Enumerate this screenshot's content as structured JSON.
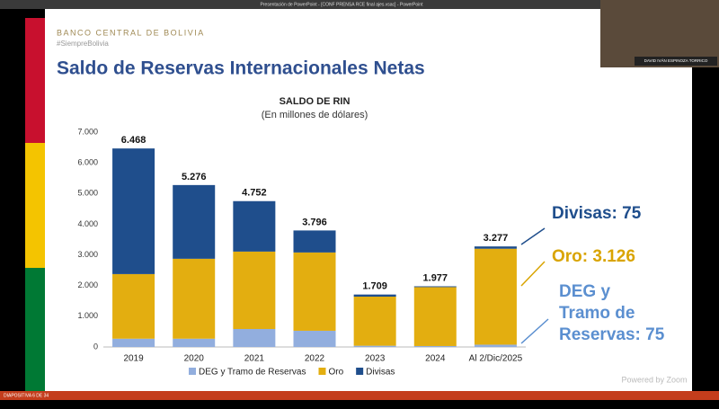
{
  "window": {
    "title": "Presentación de PowerPoint - [CONF PRENSA RCE final ajes.vsac] - PowerPoint",
    "status": "DIAPOSITIVA 6 DE 34",
    "video_name": "DAVID IVÁN ESPINOZA TORRICO",
    "zoom_note": "Powered by Zoom"
  },
  "slide": {
    "brand": "BANCO CENTRAL DE BOLIVIA",
    "hashtag": "#SiempreBolivia",
    "title": "Saldo de Reservas Internacionales Netas",
    "annotations": [
      {
        "lines": [
          "Divisas: 75"
        ],
        "color": "#1f4e8c"
      },
      {
        "lines": [
          "Oro: 3.126"
        ],
        "color": "#d9a400"
      },
      {
        "lines": [
          "DEG y",
          "Tramo de",
          "Reservas: 75"
        ],
        "color": "#5b8fd0"
      }
    ]
  },
  "chart_data": {
    "type": "stacked_bar",
    "title": "SALDO DE RIN",
    "subtitle": "(En millones de dólares)",
    "categories": [
      "2019",
      "2020",
      "2021",
      "2022",
      "2023",
      "2024",
      "Al 2/Dic/2025"
    ],
    "series": [
      {
        "name": "DEG y Tramo de Reservas",
        "color": "#92aede",
        "values": [
          270,
          270,
          586,
          528,
          40,
          30,
          75
        ]
      },
      {
        "name": "Oro",
        "color": "#e3ae10",
        "values": [
          2105,
          2604,
          2522,
          2551,
          1600,
          1920,
          3126
        ]
      },
      {
        "name": "Divisas",
        "color": "#1f4e8c",
        "values": [
          4093,
          2402,
          1644,
          717,
          69,
          27,
          75
        ]
      }
    ],
    "totals": {
      "values": [
        6468,
        5276,
        4752,
        3796,
        1709,
        1977,
        3277
      ],
      "value_labels": [
        "6.468",
        "5.276",
        "4.752",
        "3.796",
        "1.709",
        "1.977",
        "3.277"
      ]
    },
    "ylim": [
      0,
      7000
    ],
    "yticks": [
      0,
      {
        "value": 1000,
        "label": "1.000"
      },
      {
        "value": 2000,
        "label": "2.000"
      },
      {
        "value": 3000,
        "label": "3.000"
      },
      {
        "value": 4000,
        "label": "4.000"
      },
      {
        "value": 5000,
        "label": "5.000"
      },
      {
        "value": 6000,
        "label": "6.000"
      },
      {
        "value": 7000,
        "label": "7.000"
      }
    ],
    "grid": false,
    "legend": "bottom"
  }
}
